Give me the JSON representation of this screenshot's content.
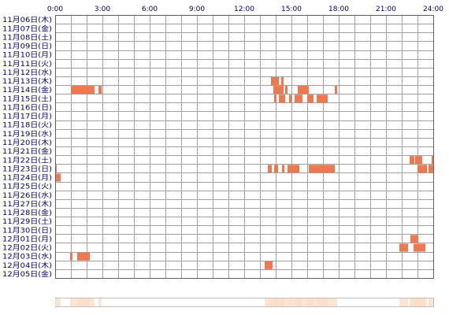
{
  "chart_data": {
    "type": "heatmap",
    "title": "",
    "xlabel": "",
    "ylabel": "",
    "x_ticks": [
      "0:00",
      "3:00",
      "6:00",
      "9:00",
      "12:00",
      "15:00",
      "18:00",
      "21:00",
      "24:00"
    ],
    "x_range_hours": [
      0,
      24
    ],
    "dates": [
      "11月06日(木)",
      "11月07日(金)",
      "11月08日(土)",
      "11月09日(日)",
      "11月10日(月)",
      "11月11日(火)",
      "11月12日(水)",
      "11月13日(木)",
      "11月14日(金)",
      "11月15日(土)",
      "11月16日(日)",
      "11月17日(月)",
      "11月18日(火)",
      "11月19日(水)",
      "11月20日(木)",
      "11月21日(金)",
      "11月22日(土)",
      "11月23日(日)",
      "11月24日(月)",
      "11月25日(火)",
      "11月26日(水)",
      "11月27日(木)",
      "11月28日(金)",
      "11月29日(土)",
      "11月30日(日)",
      "12月01日(月)",
      "12月02日(火)",
      "12月03日(水)",
      "12月04日(木)",
      "12月05日(金)"
    ],
    "grid": true,
    "colors": {
      "activity": "#f07850",
      "grid": "#a0a0a0",
      "text": "#000066",
      "summary_bar": "#fcdcc8"
    },
    "activity": [
      {
        "date": "11月13日(木)",
        "intervals": [
          [
            13.7,
            14.2
          ],
          [
            14.35,
            14.5
          ]
        ]
      },
      {
        "date": "11月14日(金)",
        "intervals": [
          [
            1.0,
            2.5
          ],
          [
            2.75,
            2.95
          ],
          [
            13.85,
            14.5
          ],
          [
            14.6,
            14.75
          ],
          [
            15.4,
            16.1
          ],
          [
            17.75,
            17.9
          ]
        ]
      },
      {
        "date": "11月15日(土)",
        "intervals": [
          [
            13.9,
            14.05
          ],
          [
            14.2,
            14.6
          ],
          [
            14.85,
            15.0
          ],
          [
            15.2,
            15.7
          ],
          [
            16.0,
            16.4
          ],
          [
            16.6,
            17.3
          ]
        ]
      },
      {
        "date": "11月22日(土)",
        "intervals": [
          [
            22.5,
            22.8
          ],
          [
            22.85,
            23.3
          ],
          [
            23.9,
            24.0
          ]
        ]
      },
      {
        "date": "11月23日(日)",
        "intervals": [
          [
            0.0,
            0.1
          ],
          [
            13.5,
            13.75
          ],
          [
            13.9,
            14.15
          ],
          [
            14.4,
            14.55
          ],
          [
            14.75,
            15.5
          ],
          [
            16.1,
            17.75
          ],
          [
            23.0,
            23.6
          ],
          [
            23.7,
            24.0
          ]
        ]
      },
      {
        "date": "11月24日(月)",
        "intervals": [
          [
            0.0,
            0.35
          ]
        ]
      },
      {
        "date": "12月01日(月)",
        "intervals": [
          [
            22.55,
            23.05
          ]
        ]
      },
      {
        "date": "12月02日(火)",
        "intervals": [
          [
            21.85,
            22.4
          ],
          [
            22.75,
            23.5
          ]
        ]
      },
      {
        "date": "12月03日(水)",
        "intervals": [
          [
            0.95,
            1.1
          ],
          [
            1.4,
            2.2
          ]
        ]
      },
      {
        "date": "12月04日(木)",
        "intervals": [
          [
            13.3,
            13.8
          ]
        ]
      }
    ]
  }
}
